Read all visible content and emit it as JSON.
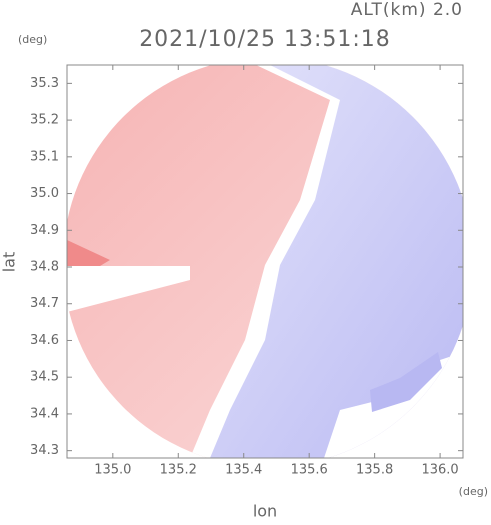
{
  "chart_data": {
    "type": "image",
    "title": "2021/10/25 13:51:18",
    "subtitle": "ALT(km) 2.0",
    "x_label": "lon",
    "y_label": "lat",
    "x_unit": "(deg)",
    "y_unit": "(deg)",
    "xlim": [
      134.86,
      136.07
    ],
    "ylim": [
      34.28,
      35.35
    ],
    "xticks": [
      {
        "value": 135,
        "label": "135.0"
      },
      135.2,
      135.4,
      135.6,
      135.8,
      {
        "value": 136,
        "label": "136.0"
      }
    ],
    "yticks": [
      34.3,
      34.4,
      34.5,
      34.6,
      34.7,
      34.8,
      34.9,
      {
        "value": 35,
        "label": "35.0"
      },
      35.1,
      35.2,
      35.3
    ]
  }
}
